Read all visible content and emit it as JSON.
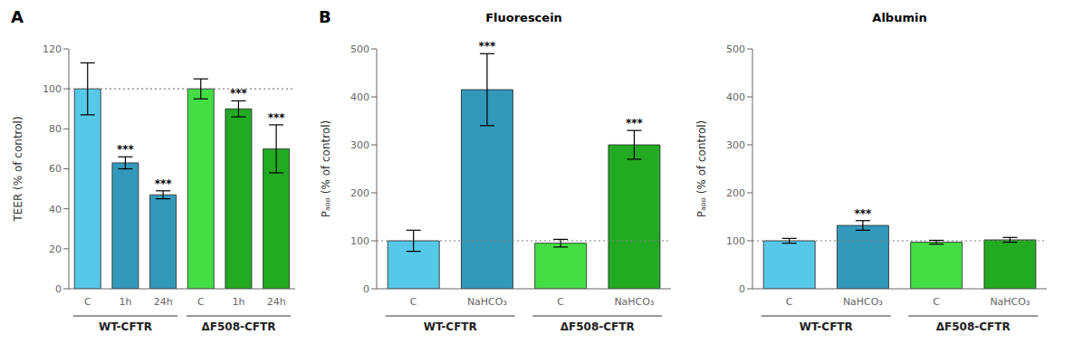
{
  "chart_data": [
    {
      "type": "bar",
      "panel_label": "A",
      "ylabel": "TEER (% of control)",
      "categories": [
        "C",
        "1h",
        "24h",
        "C",
        "1h",
        "24h"
      ],
      "values": [
        100,
        63,
        47,
        100,
        90,
        70
      ],
      "errors": [
        13,
        3,
        2,
        5,
        4,
        12
      ],
      "colors": [
        "#56C8E8",
        "#3399BB",
        "#3399BB",
        "#44DD44",
        "#22AA22",
        "#22AA22"
      ],
      "sig_labels": [
        null,
        "***",
        "***",
        null,
        "***",
        "***"
      ],
      "groups": [
        "WT-CFTR",
        "ΔF508-CFTR"
      ],
      "reference_line": 100,
      "ylim": [
        0,
        120
      ],
      "yticks": [
        0,
        20,
        40,
        60,
        80,
        100,
        120
      ],
      "grid": false
    },
    {
      "type": "bar",
      "panel_label": "B",
      "title": "Fluorescein",
      "ylabel": "Pₐₚₚ (% of control)",
      "categories": [
        "C",
        "NaHCO₃",
        "C",
        "NaHCO₃"
      ],
      "values": [
        100,
        415,
        95,
        300
      ],
      "errors": [
        22,
        75,
        8,
        30
      ],
      "colors": [
        "#56C8E8",
        "#3399BB",
        "#44DD44",
        "#22AA22"
      ],
      "sig_labels": [
        null,
        "***",
        null,
        "***"
      ],
      "groups": [
        "WT-CFTR",
        "ΔF508-CFTR"
      ],
      "reference_line": 100,
      "ylim": [
        0,
        500
      ],
      "yticks": [
        0,
        100,
        200,
        300,
        400,
        500
      ],
      "grid": false
    },
    {
      "type": "bar",
      "title": "Albumin",
      "ylabel": "Pₐₚₚ (% of control)",
      "categories": [
        "C",
        "NaHCO₃",
        "C",
        "NaHCO₃"
      ],
      "values": [
        100,
        132,
        97,
        102
      ],
      "errors": [
        5,
        10,
        4,
        5
      ],
      "colors": [
        "#56C8E8",
        "#3399BB",
        "#44DD44",
        "#22AA22"
      ],
      "sig_labels": [
        null,
        "***",
        null,
        null
      ],
      "groups": [
        "WT-CFTR",
        "ΔF508-CFTR"
      ],
      "reference_line": 100,
      "ylim": [
        0,
        500
      ],
      "yticks": [
        0,
        100,
        200,
        300,
        400,
        500
      ],
      "grid": false
    }
  ]
}
